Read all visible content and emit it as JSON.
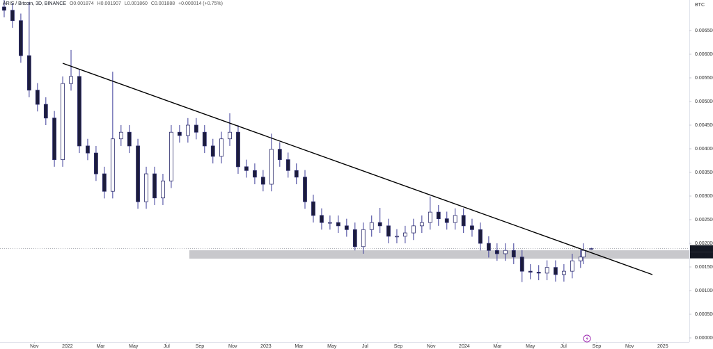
{
  "chart_data": {
    "type": "candlestick",
    "legend": {
      "symbol": "ARIS / Bitcoin, 3D, BINANCE",
      "open": "O0.001874",
      "high": "H0.001907",
      "low": "L0.001860",
      "close": "C0.001888",
      "change": "+0.000014 (+0.75%)"
    },
    "y_unit": "BTC",
    "x": [
      2021.681,
      2021.723,
      2021.765,
      2021.807,
      2021.849,
      2021.891,
      2021.934,
      2021.976,
      2022.018,
      2022.06,
      2022.102,
      2022.144,
      2022.186,
      2022.228,
      2022.27,
      2022.312,
      2022.355,
      2022.397,
      2022.439,
      2022.481,
      2022.523,
      2022.565,
      2022.607,
      2022.649,
      2022.691,
      2022.733,
      2022.776,
      2022.818,
      2022.86,
      2022.902,
      2022.944,
      2022.986,
      2023.028,
      2023.07,
      2023.112,
      2023.154,
      2023.197,
      2023.239,
      2023.281,
      2023.323,
      2023.365,
      2023.407,
      2023.449,
      2023.491,
      2023.533,
      2023.575,
      2023.618,
      2023.66,
      2023.702,
      2023.744,
      2023.786,
      2023.828,
      2023.87,
      2023.912,
      2023.954,
      2023.996,
      2024.039,
      2024.081,
      2024.123,
      2024.165,
      2024.207,
      2024.249,
      2024.291,
      2024.333,
      2024.375,
      2024.417,
      2024.46,
      2024.502,
      2024.544,
      2024.586,
      2024.6,
      2024.64
    ],
    "open": [
      0.007,
      0.00693,
      0.00671,
      0.00597,
      0.00524,
      0.00494,
      0.00465,
      0.00377,
      0.00538,
      0.00553,
      0.00406,
      0.00391,
      0.00347,
      0.0031,
      0.00421,
      0.00435,
      0.00406,
      0.00288,
      0.00347,
      0.00296,
      0.00332,
      0.00435,
      0.00428,
      0.0045,
      0.00435,
      0.00406,
      0.00384,
      0.00421,
      0.00435,
      0.00362,
      0.00354,
      0.0034,
      0.00325,
      0.00399,
      0.00377,
      0.00354,
      0.0034,
      0.00288,
      0.00259,
      0.00244,
      0.00244,
      0.00237,
      0.00229,
      0.00193,
      0.00229,
      0.00244,
      0.00237,
      0.00215,
      0.00215,
      0.00222,
      0.00237,
      0.00244,
      0.00266,
      0.00252,
      0.00244,
      0.00259,
      0.00237,
      0.00229,
      0.002,
      0.00185,
      0.00178,
      0.00185,
      0.00171,
      0.00141,
      0.00139,
      0.00137,
      0.00149,
      0.00134,
      0.00141,
      0.00163,
      0.00171,
      0.001874
    ],
    "high": [
      0.00715,
      0.00708,
      0.00686,
      0.0071,
      0.00539,
      0.00509,
      0.0048,
      0.00553,
      0.00609,
      0.00568,
      0.00421,
      0.00406,
      0.00362,
      0.00563,
      0.0045,
      0.0045,
      0.00421,
      0.00362,
      0.00362,
      0.00347,
      0.0045,
      0.0045,
      0.00465,
      0.00465,
      0.0045,
      0.00421,
      0.00436,
      0.00475,
      0.0045,
      0.00377,
      0.00369,
      0.00355,
      0.00432,
      0.00414,
      0.00392,
      0.00369,
      0.00355,
      0.00303,
      0.00274,
      0.00259,
      0.00259,
      0.00252,
      0.00244,
      0.00244,
      0.00259,
      0.00275,
      0.00252,
      0.0023,
      0.00237,
      0.00252,
      0.00259,
      0.00299,
      0.00281,
      0.00267,
      0.00274,
      0.00274,
      0.00252,
      0.00244,
      0.00215,
      0.002,
      0.002,
      0.002,
      0.00186,
      0.00156,
      0.00154,
      0.00164,
      0.00164,
      0.00156,
      0.00178,
      0.00186,
      0.002,
      0.001907
    ],
    "low": [
      0.00678,
      0.00656,
      0.00582,
      0.00509,
      0.00479,
      0.0045,
      0.00362,
      0.00362,
      0.00523,
      0.00391,
      0.00376,
      0.00332,
      0.00295,
      0.00295,
      0.00406,
      0.00391,
      0.00273,
      0.00273,
      0.00281,
      0.00281,
      0.00317,
      0.00413,
      0.00413,
      0.0042,
      0.00391,
      0.00369,
      0.00369,
      0.00406,
      0.00347,
      0.00339,
      0.00325,
      0.0031,
      0.0031,
      0.00362,
      0.00339,
      0.00325,
      0.00273,
      0.00244,
      0.00229,
      0.00229,
      0.00222,
      0.00214,
      0.00185,
      0.00178,
      0.00214,
      0.00222,
      0.002,
      0.002,
      0.002,
      0.00207,
      0.00222,
      0.00229,
      0.00237,
      0.00229,
      0.00229,
      0.00222,
      0.00214,
      0.00185,
      0.0017,
      0.00163,
      0.00163,
      0.00156,
      0.00118,
      0.00124,
      0.00122,
      0.00122,
      0.00119,
      0.00119,
      0.00126,
      0.00148,
      0.00156,
      0.00186
    ],
    "close": [
      0.00693,
      0.00671,
      0.00597,
      0.00524,
      0.00494,
      0.00465,
      0.00377,
      0.00538,
      0.00553,
      0.00406,
      0.00391,
      0.00347,
      0.0031,
      0.00421,
      0.00435,
      0.00406,
      0.00288,
      0.00347,
      0.00296,
      0.00332,
      0.00435,
      0.00428,
      0.0045,
      0.00435,
      0.00406,
      0.00384,
      0.00421,
      0.00435,
      0.00362,
      0.00354,
      0.0034,
      0.00325,
      0.00399,
      0.00377,
      0.00354,
      0.0034,
      0.00288,
      0.00259,
      0.00244,
      0.00244,
      0.00237,
      0.00229,
      0.00193,
      0.00229,
      0.00244,
      0.00237,
      0.00215,
      0.00215,
      0.00222,
      0.00237,
      0.00244,
      0.00266,
      0.00252,
      0.00244,
      0.00259,
      0.00237,
      0.00229,
      0.002,
      0.00185,
      0.00178,
      0.00185,
      0.00171,
      0.00141,
      0.00139,
      0.00137,
      0.00149,
      0.00134,
      0.00141,
      0.00163,
      0.00171,
      0.00185,
      0.001888
    ],
    "up_color": "#ffffff",
    "down_color": "#1c1c3c",
    "border_color": "#2b2b6b",
    "wick_color": "#3b3b98",
    "xlim": [
      2021.66,
      2025.134
    ],
    "xticks": [
      {
        "value": 2021.833,
        "label": "Nov"
      },
      {
        "value": 2022,
        "label": "2022"
      },
      {
        "value": 2022.167,
        "label": "Mar"
      },
      {
        "value": 2022.333,
        "label": "May"
      },
      {
        "value": 2022.5,
        "label": "Jul"
      },
      {
        "value": 2022.667,
        "label": "Sep"
      },
      {
        "value": 2022.833,
        "label": "Nov"
      },
      {
        "value": 2023,
        "label": "2023"
      },
      {
        "value": 2023.167,
        "label": "Mar"
      },
      {
        "value": 2023.333,
        "label": "May"
      },
      {
        "value": 2023.5,
        "label": "Jul"
      },
      {
        "value": 2023.667,
        "label": "Sep"
      },
      {
        "value": 2023.833,
        "label": "Nov"
      },
      {
        "value": 2024,
        "label": "2024"
      },
      {
        "value": 2024.167,
        "label": "Mar"
      },
      {
        "value": 2024.333,
        "label": "May"
      },
      {
        "value": 2024.5,
        "label": "Jul"
      },
      {
        "value": 2024.667,
        "label": "Sep"
      },
      {
        "value": 2024.833,
        "label": "Nov"
      },
      {
        "value": 2025,
        "label": "2025"
      }
    ],
    "ylim": [
      -8.8e-05,
      0.007147
    ],
    "yticks": [
      {
        "value": 0.0065,
        "label": "0.006500"
      },
      {
        "value": 0.006,
        "label": "0.006000"
      },
      {
        "value": 0.0055,
        "label": "0.005500"
      },
      {
        "value": 0.005,
        "label": "0.005000"
      },
      {
        "value": 0.0045,
        "label": "0.004500"
      },
      {
        "value": 0.004,
        "label": "0.004000"
      },
      {
        "value": 0.0035,
        "label": "0.003500"
      },
      {
        "value": 0.003,
        "label": "0.003000"
      },
      {
        "value": 0.0025,
        "label": "0.002500"
      },
      {
        "value": 0.002,
        "label": "0.002000"
      },
      {
        "value": 0.0015,
        "label": "0.001500"
      },
      {
        "value": 0.001,
        "label": "0.001000"
      },
      {
        "value": 0.0005,
        "label": "0.000500"
      },
      {
        "value": 0,
        "label": "0.000000"
      }
    ],
    "grid": false,
    "trendline": {
      "x": [
        2021.976,
        2024.948
      ],
      "y": [
        0.005809,
        0.001338
      ],
      "color": "#000000"
    },
    "support_zone": {
      "x": 2022.614,
      "ylim": [
        0.001676,
        0.001853
      ],
      "color": "#c8c8cc"
    },
    "last_price": 0.001888,
    "countdown": "2d 16h"
  }
}
